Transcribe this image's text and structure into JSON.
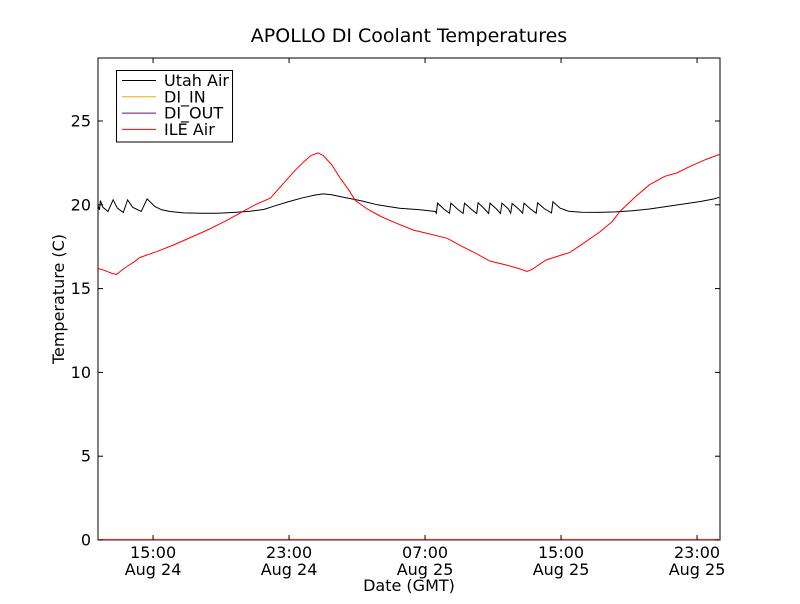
{
  "figure": {
    "background": "#ffffff"
  },
  "chart_data": {
    "type": "line",
    "title": "APOLLO DI Coolant Temperatures",
    "xlabel": "Date (GMT)",
    "ylabel": "Temperature (C)",
    "x_units": "hours since Aug 24 00:00 GMT",
    "xlim": [
      11.76,
      48.35
    ],
    "ylim": [
      0,
      28.76
    ],
    "grid": false,
    "y_ticks": [
      0,
      5,
      10,
      15,
      20,
      25
    ],
    "x_ticks": [
      {
        "value": 15,
        "time": "15:00",
        "date": "Aug 24"
      },
      {
        "value": 23,
        "time": "23:00",
        "date": "Aug 24"
      },
      {
        "value": 31,
        "time": "07:00",
        "date": "Aug 25"
      },
      {
        "value": 39,
        "time": "15:00",
        "date": "Aug 25"
      },
      {
        "value": 47,
        "time": "23:00",
        "date": "Aug 25"
      }
    ],
    "legend": {
      "position": "upper left",
      "entries": [
        {
          "label": "Utah Air",
          "color": "#000000"
        },
        {
          "label": "DI_IN",
          "color": "#ffa500"
        },
        {
          "label": "DI_OUT",
          "color": "#800080"
        },
        {
          "label": "ILE Air",
          "color": "#ff0000"
        }
      ]
    },
    "series": [
      {
        "name": "Utah Air",
        "color": "#000000",
        "points": [
          [
            11.76,
            19.95
          ],
          [
            11.85,
            19.7
          ],
          [
            11.9,
            20.25
          ],
          [
            12.05,
            19.85
          ],
          [
            12.35,
            19.6
          ],
          [
            12.65,
            20.3
          ],
          [
            12.9,
            19.8
          ],
          [
            13.25,
            19.55
          ],
          [
            13.5,
            20.3
          ],
          [
            13.8,
            19.85
          ],
          [
            14.3,
            19.6
          ],
          [
            14.65,
            20.35
          ],
          [
            15.1,
            19.9
          ],
          [
            15.5,
            19.7
          ],
          [
            16.0,
            19.6
          ],
          [
            16.8,
            19.52
          ],
          [
            17.8,
            19.5
          ],
          [
            18.8,
            19.5
          ],
          [
            19.8,
            19.55
          ],
          [
            20.7,
            19.62
          ],
          [
            21.5,
            19.72
          ],
          [
            22.2,
            19.95
          ],
          [
            23.0,
            20.2
          ],
          [
            23.8,
            20.42
          ],
          [
            24.5,
            20.58
          ],
          [
            25.0,
            20.65
          ],
          [
            25.5,
            20.6
          ],
          [
            26.2,
            20.45
          ],
          [
            27.2,
            20.25
          ],
          [
            28.2,
            20.0
          ],
          [
            29.5,
            19.8
          ],
          [
            30.7,
            19.7
          ],
          [
            31.6,
            19.6
          ],
          [
            31.66,
            19.5
          ],
          [
            31.74,
            20.1
          ],
          [
            32.1,
            19.75
          ],
          [
            32.44,
            19.5
          ],
          [
            32.52,
            20.1
          ],
          [
            32.9,
            19.75
          ],
          [
            33.24,
            19.48
          ],
          [
            33.32,
            20.1
          ],
          [
            33.7,
            19.75
          ],
          [
            34.04,
            19.48
          ],
          [
            34.12,
            20.12
          ],
          [
            34.5,
            19.75
          ],
          [
            34.74,
            19.48
          ],
          [
            34.82,
            20.1
          ],
          [
            35.2,
            19.75
          ],
          [
            35.44,
            19.48
          ],
          [
            35.52,
            20.1
          ],
          [
            35.9,
            19.75
          ],
          [
            36.04,
            19.5
          ],
          [
            36.12,
            20.08
          ],
          [
            36.5,
            19.75
          ],
          [
            36.74,
            19.5
          ],
          [
            36.82,
            20.1
          ],
          [
            37.2,
            19.75
          ],
          [
            37.54,
            19.5
          ],
          [
            37.62,
            20.12
          ],
          [
            38.0,
            19.78
          ],
          [
            38.44,
            19.52
          ],
          [
            38.52,
            20.18
          ],
          [
            38.95,
            19.8
          ],
          [
            39.45,
            19.62
          ],
          [
            40.2,
            19.56
          ],
          [
            41.2,
            19.55
          ],
          [
            42.2,
            19.58
          ],
          [
            43.2,
            19.65
          ],
          [
            44.2,
            19.75
          ],
          [
            45.2,
            19.9
          ],
          [
            46.2,
            20.05
          ],
          [
            47.2,
            20.2
          ],
          [
            48.0,
            20.35
          ],
          [
            48.3,
            20.45
          ]
        ]
      },
      {
        "name": "DI_IN",
        "color": "#ffa500",
        "points": [
          [
            11.76,
            0
          ],
          [
            48.35,
            0
          ]
        ]
      },
      {
        "name": "DI_OUT",
        "color": "#800080",
        "points": [
          [
            11.76,
            0
          ],
          [
            48.35,
            0
          ]
        ]
      },
      {
        "name": "ILE Air",
        "color": "#ff0000",
        "points": [
          [
            11.76,
            16.2
          ],
          [
            12.1,
            16.1
          ],
          [
            12.6,
            15.9
          ],
          [
            12.85,
            15.85
          ],
          [
            13.1,
            16.05
          ],
          [
            13.5,
            16.35
          ],
          [
            13.9,
            16.6
          ],
          [
            14.2,
            16.85
          ],
          [
            15.2,
            17.2
          ],
          [
            16.2,
            17.6
          ],
          [
            17.2,
            18.05
          ],
          [
            18.2,
            18.5
          ],
          [
            19.2,
            19.0
          ],
          [
            20.1,
            19.5
          ],
          [
            21.0,
            20.0
          ],
          [
            21.9,
            20.4
          ],
          [
            22.6,
            21.2
          ],
          [
            23.3,
            22.0
          ],
          [
            23.9,
            22.6
          ],
          [
            24.3,
            22.95
          ],
          [
            24.7,
            23.1
          ],
          [
            25.0,
            22.95
          ],
          [
            25.5,
            22.4
          ],
          [
            26.0,
            21.6
          ],
          [
            26.5,
            20.9
          ],
          [
            26.9,
            20.25
          ],
          [
            27.6,
            19.75
          ],
          [
            28.4,
            19.3
          ],
          [
            29.3,
            18.9
          ],
          [
            30.3,
            18.5
          ],
          [
            31.3,
            18.25
          ],
          [
            32.3,
            18.0
          ],
          [
            33.2,
            17.5
          ],
          [
            34.0,
            17.1
          ],
          [
            34.8,
            16.65
          ],
          [
            35.8,
            16.4
          ],
          [
            36.5,
            16.2
          ],
          [
            37.0,
            16.02
          ],
          [
            37.3,
            16.15
          ],
          [
            38.1,
            16.7
          ],
          [
            39.0,
            17.0
          ],
          [
            39.5,
            17.15
          ],
          [
            40.3,
            17.7
          ],
          [
            41.3,
            18.4
          ],
          [
            42.0,
            19.0
          ],
          [
            42.5,
            19.65
          ],
          [
            43.4,
            20.5
          ],
          [
            44.2,
            21.2
          ],
          [
            45.1,
            21.7
          ],
          [
            45.8,
            21.9
          ],
          [
            46.6,
            22.3
          ],
          [
            47.5,
            22.7
          ],
          [
            48.3,
            23.0
          ]
        ]
      }
    ]
  }
}
